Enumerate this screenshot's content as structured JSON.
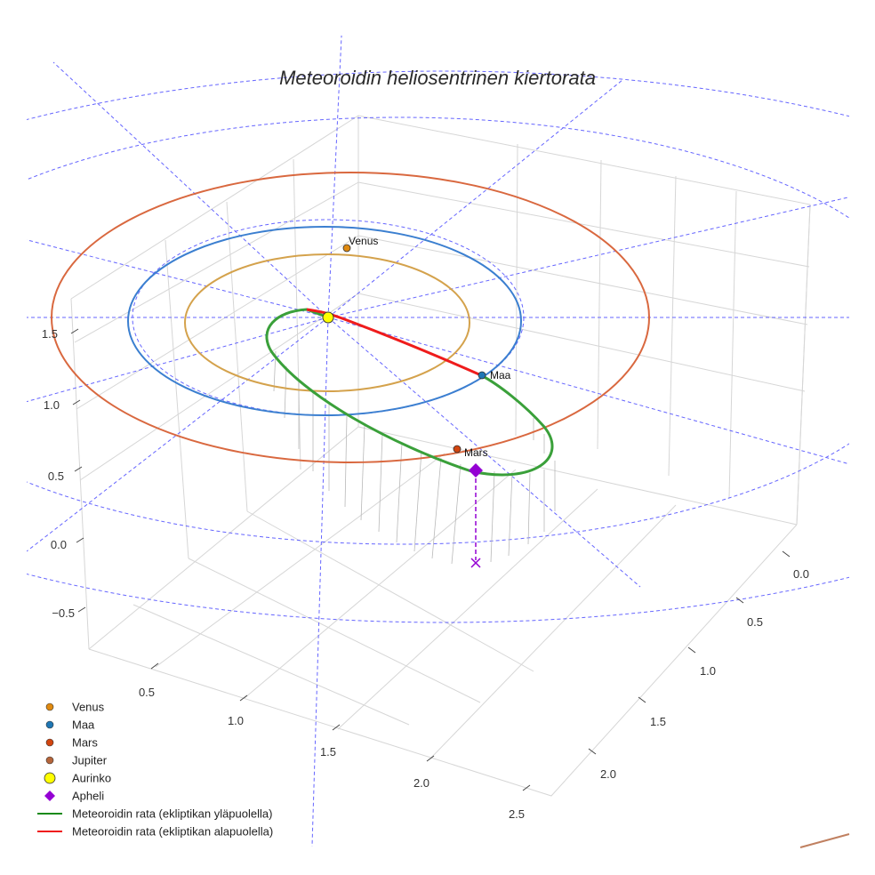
{
  "title": "Meteoroidin heliosentrinen kiertorata",
  "chart_data": {
    "type": "scatter3d",
    "title": "Meteoroidin heliosentrinen kiertorata",
    "axes": {
      "x": {
        "ticks": [
          "0.5",
          "1.0",
          "1.5",
          "2.0",
          "2.5"
        ]
      },
      "y": {
        "ticks": [
          "0.0",
          "0.5",
          "1.0",
          "1.5",
          "2.0"
        ]
      },
      "z": {
        "ticks": [
          "−0.5",
          "0.0",
          "0.5",
          "1.0",
          "1.5"
        ]
      }
    },
    "planets": [
      {
        "name": "Venus",
        "color": "#e08a10",
        "orbit_color": "#d4a24c",
        "orbit_radius_au": 0.72
      },
      {
        "name": "Maa",
        "color": "#1f77b4",
        "orbit_color": "#3b7fd0",
        "orbit_radius_au": 1.0
      },
      {
        "name": "Mars",
        "color": "#d2450f",
        "orbit_color": "#d9683f",
        "orbit_radius_au": 1.52
      },
      {
        "name": "Jupiter",
        "color": "#b5653a",
        "orbit_color": "#c08060",
        "orbit_radius_au": 5.2
      }
    ],
    "sun": {
      "name": "Aurinko",
      "color": "#ffff00"
    },
    "aphelion": {
      "name": "Apheli",
      "color": "#9400d3"
    },
    "meteoroid_orbit": {
      "above_ecliptic": {
        "name": "Meteoroidin rata (ekliptikan yläpuolella)",
        "color": "#2ca02c"
      },
      "below_ecliptic": {
        "name": "Meteoroidin rata (ekliptikan alapuolella)",
        "color": "#ef1c1c"
      }
    },
    "ecliptic_grid": {
      "rings_au": [
        1,
        2,
        3
      ],
      "spokes": 12,
      "color": "#4b4bff"
    },
    "legend": {
      "placement": "bottom-left"
    }
  },
  "legend": [
    {
      "label": "Venus",
      "kind": "dot",
      "color": "#e08a10"
    },
    {
      "label": "Maa",
      "kind": "dot",
      "color": "#1f77b4"
    },
    {
      "label": "Mars",
      "kind": "dot",
      "color": "#d2450f"
    },
    {
      "label": "Jupiter",
      "kind": "dot",
      "color": "#b5653a"
    },
    {
      "label": "Aurinko",
      "kind": "sun",
      "color": "#ffff00"
    },
    {
      "label": "Apheli",
      "kind": "diamond",
      "color": "#9400d3"
    },
    {
      "label": "Meteoroidin rata (ekliptikan yläpuolella)",
      "kind": "line",
      "color": "#1a8a1a"
    },
    {
      "label": "Meteoroidin rata (ekliptikan alapuolella)",
      "kind": "line",
      "color": "#ef1c1c"
    }
  ]
}
